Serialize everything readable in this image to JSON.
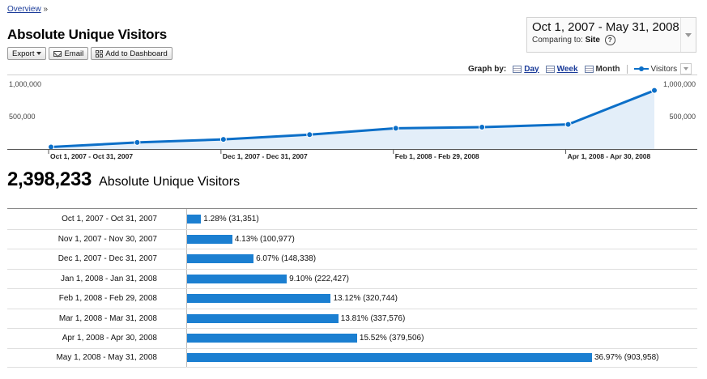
{
  "breadcrumb": {
    "link": "Overview",
    "sep": "»"
  },
  "title": "Absolute Unique Visitors",
  "toolbar": {
    "export": "Export",
    "email": "Email",
    "dashboard": "Add to Dashboard"
  },
  "daterange": {
    "range": "Oct 1, 2007 - May 31, 2008",
    "compare_label": "Comparing to:",
    "compare_value": "Site",
    "help": "?"
  },
  "graph_by": {
    "label": "Graph by:",
    "day": "Day",
    "week": "Week",
    "month": "Month",
    "metric": "Visitors"
  },
  "colors": {
    "line": "#0c6fc8",
    "area": "#e3eef9",
    "bar": "#1b7fd1",
    "link": "#1a3b99"
  },
  "chart_data": {
    "type": "line",
    "x": [
      "Oct 1, 2007 - Oct 31, 2007",
      "Nov 1, 2007 - Nov 30, 2007",
      "Dec 1, 2007 - Dec 31, 2007",
      "Jan 1, 2008 - Jan 31, 2008",
      "Feb 1, 2008 - Feb 29, 2008",
      "Mar 1, 2008 - Mar 31, 2008",
      "Apr 1, 2008 - Apr 30, 2008",
      "May 1, 2008 - May 31, 2008"
    ],
    "x_tick_labels": [
      "Oct 1, 2007 - Oct 31, 2007",
      "Dec 1, 2007 - Dec 31, 2007",
      "Feb 1, 2008 - Feb 29, 2008",
      "Apr 1, 2008 - Apr 30, 2008"
    ],
    "series": [
      {
        "name": "Visitors",
        "values": [
          31351,
          100977,
          148338,
          222427,
          320744,
          337576,
          379506,
          903958
        ]
      }
    ],
    "y_ticks": [
      500000,
      1000000
    ],
    "y_tick_labels": [
      "500,000",
      "1,000,000"
    ],
    "ylim": [
      0,
      1000000
    ],
    "area_fill": true,
    "grid": false
  },
  "total": {
    "value": "2,398,233",
    "label": "Absolute Unique Visitors"
  },
  "table": {
    "rows": [
      {
        "date": "Oct 1, 2007 - Oct 31, 2007",
        "percent": 1.28,
        "label": "1.28% (31,351)"
      },
      {
        "date": "Nov 1, 2007 - Nov 30, 2007",
        "percent": 4.13,
        "label": "4.13% (100,977)"
      },
      {
        "date": "Dec 1, 2007 - Dec 31, 2007",
        "percent": 6.07,
        "label": "6.07% (148,338)"
      },
      {
        "date": "Jan 1, 2008 - Jan 31, 2008",
        "percent": 9.1,
        "label": "9.10% (222,427)"
      },
      {
        "date": "Feb 1, 2008 - Feb 29, 2008",
        "percent": 13.12,
        "label": "13.12% (320,744)"
      },
      {
        "date": "Mar 1, 2008 - Mar 31, 2008",
        "percent": 13.81,
        "label": "13.81% (337,576)"
      },
      {
        "date": "Apr 1, 2008 - Apr 30, 2008",
        "percent": 15.52,
        "label": "15.52% (379,506)"
      },
      {
        "date": "May 1, 2008 - May 31, 2008",
        "percent": 36.97,
        "label": "36.97% (903,958)"
      }
    ]
  }
}
